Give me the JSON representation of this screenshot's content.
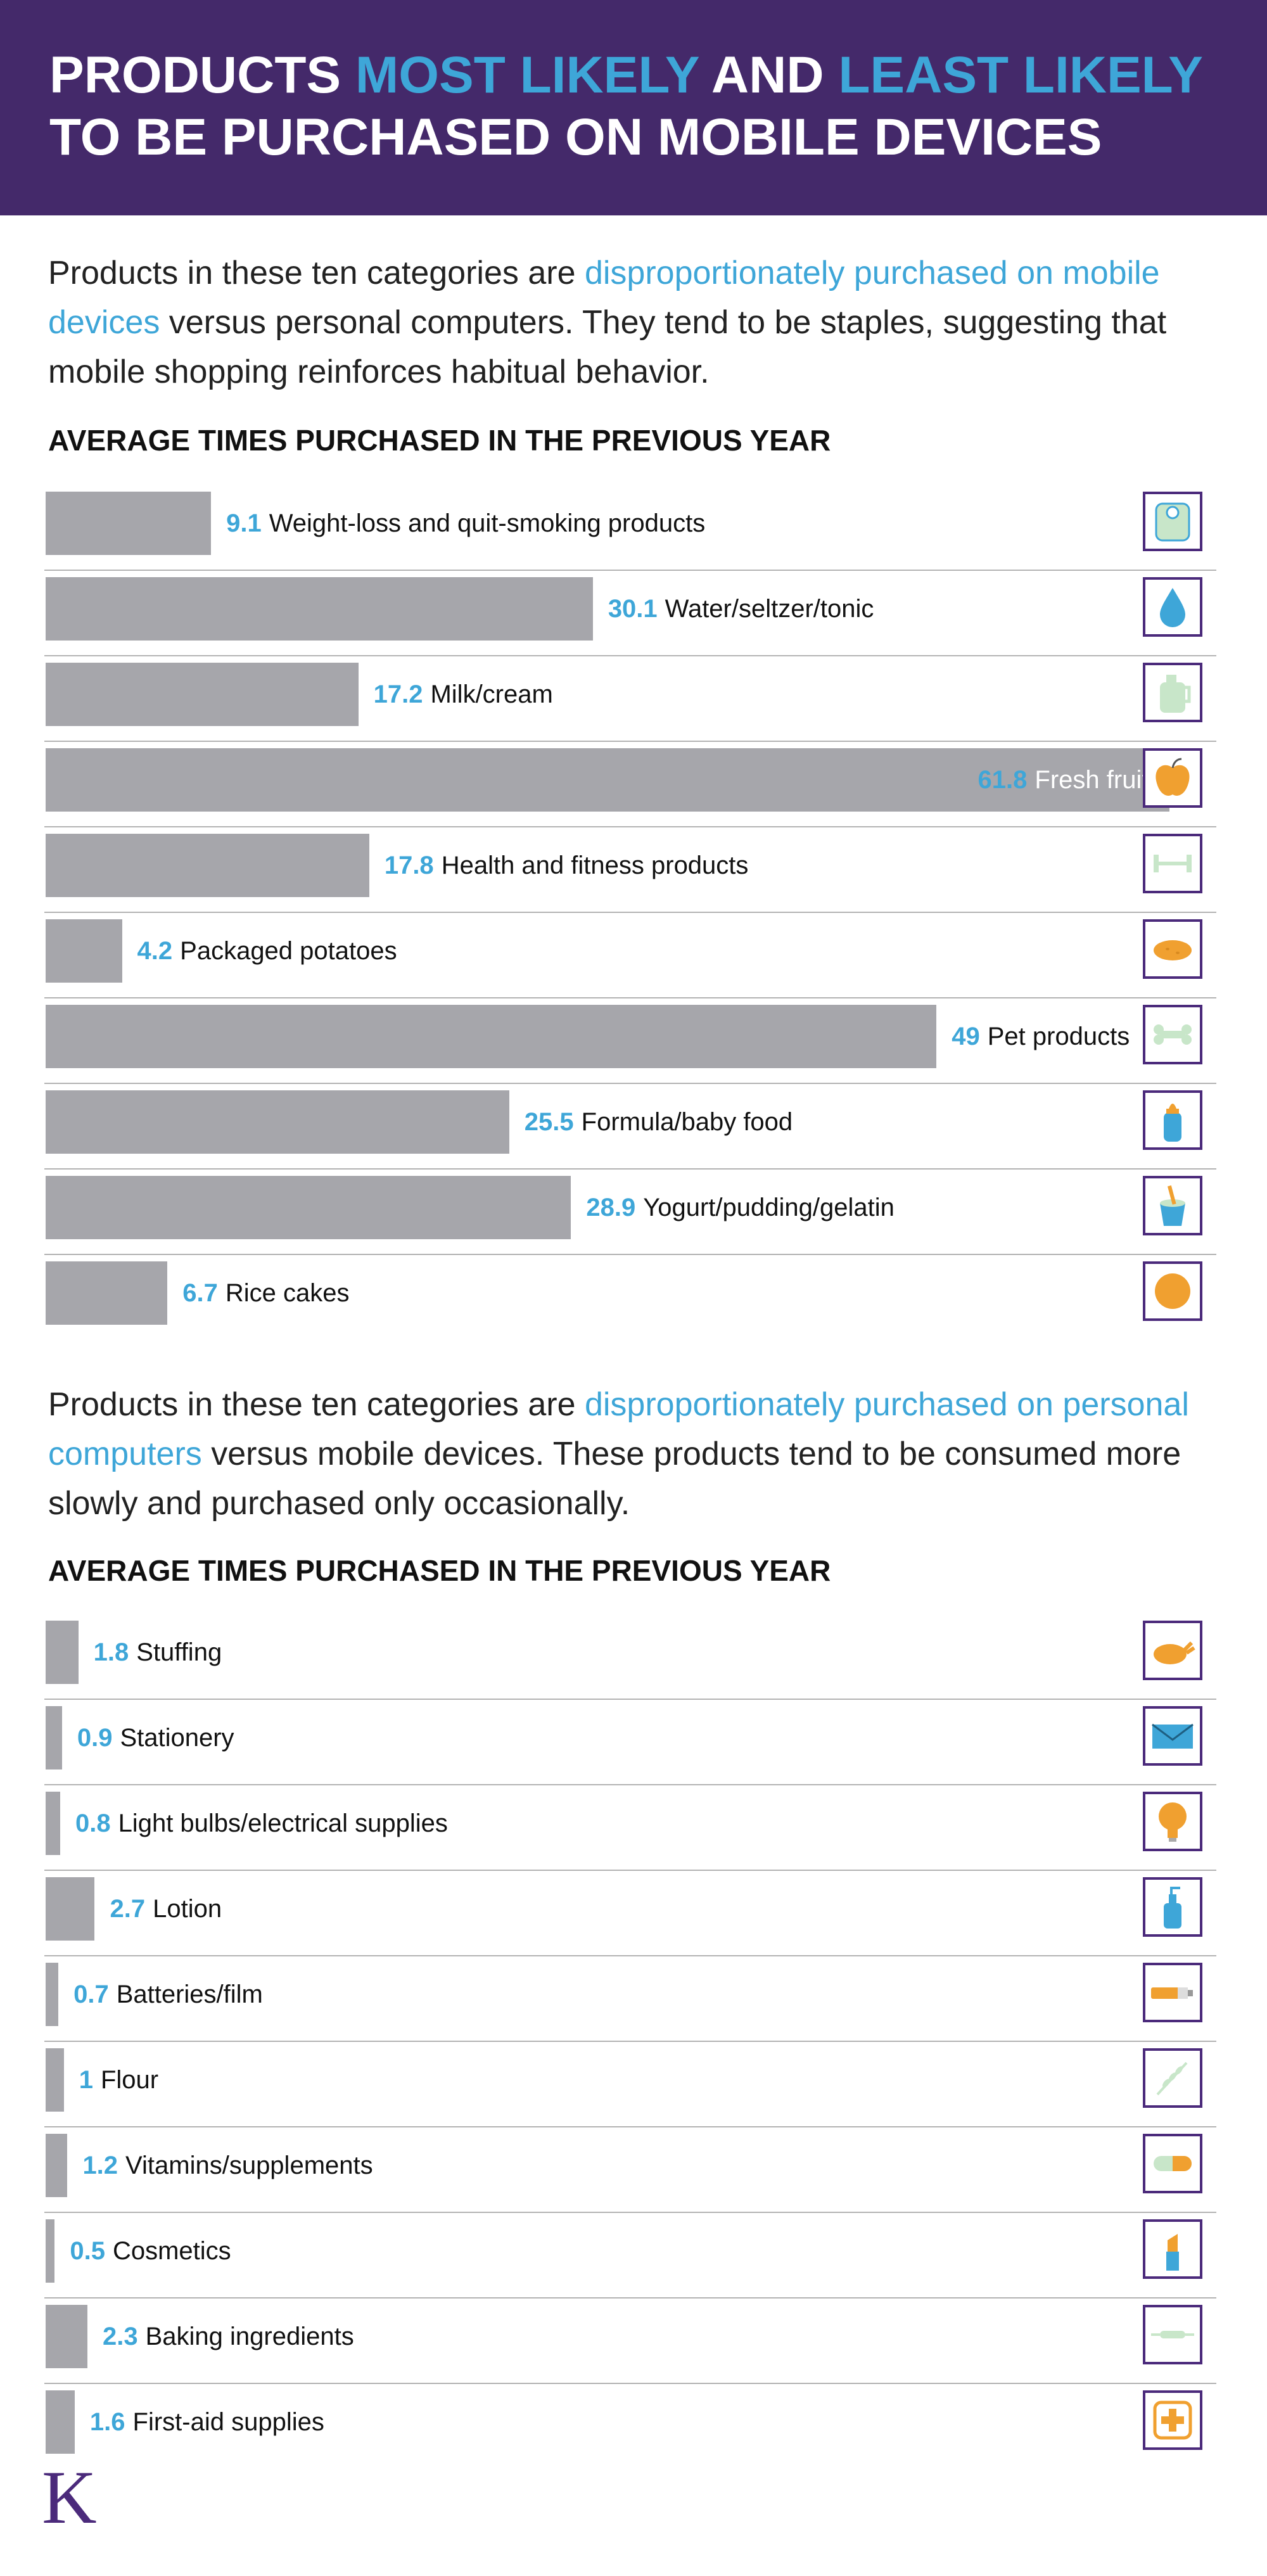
{
  "header": {
    "line1_parts": [
      "PRODUCTS ",
      "MOST LIKELY",
      " AND ",
      "LEAST LIKELY"
    ],
    "line2": "TO BE PURCHASED ON MOBILE DEVICES"
  },
  "section1": {
    "intro_pre": "Products in these ten categories are ",
    "intro_highlight": "disproportionately purchased on mobile devices",
    "intro_post": " versus personal computers. They tend to be staples, suggesting that mobile shopping reinforces habitual behavior.",
    "subhead": "AVERAGE TIMES PURCHASED IN THE PREVIOUS YEAR"
  },
  "section2": {
    "intro_pre": "Products in these ten categories are ",
    "intro_highlight": "disproportionately purchased on personal computers",
    "intro_post": " versus mobile devices. These products tend to be consumed more slowly and purchased only occasionally.",
    "subhead": "AVERAGE TIMES PURCHASED IN THE PREVIOUS YEAR"
  },
  "logo_letter": "K",
  "colors": {
    "header_bg": "#44296a",
    "accent": "#3ea6d8",
    "bar": "#a6a6ab",
    "icon_border": "#4b2a7b"
  },
  "chart_data": [
    {
      "type": "bar",
      "title": "AVERAGE TIMES PURCHASED IN THE PREVIOUS YEAR",
      "orientation": "horizontal",
      "categories": [
        "Weight-loss and quit-smoking products",
        "Water/seltzer/tonic",
        "Milk/cream",
        "Fresh fruits",
        "Health and fitness products",
        "Packaged potatoes",
        "Pet products",
        "Formula/baby food",
        "Yogurt/pudding/gelatin",
        "Rice cakes"
      ],
      "values": [
        9.1,
        30.1,
        17.2,
        61.8,
        17.8,
        4.2,
        49,
        25.5,
        28.9,
        6.7
      ],
      "value_labels": [
        "9.1",
        "30.1",
        "17.2",
        "61.8",
        "17.8",
        "4.2",
        "49",
        "25.5",
        "28.9",
        "6.7"
      ],
      "icons": [
        "scale-icon",
        "water-drop-icon",
        "milk-jug-icon",
        "apple-icon",
        "dumbbell-icon",
        "potato-icon",
        "bone-icon",
        "baby-bottle-icon",
        "yogurt-cup-icon",
        "rice-cake-icon"
      ],
      "xlim": [
        0,
        63
      ]
    },
    {
      "type": "bar",
      "title": "AVERAGE TIMES PURCHASED IN THE PREVIOUS YEAR",
      "orientation": "horizontal",
      "categories": [
        "Stuffing",
        "Stationery",
        "Light bulbs/electrical supplies",
        "Lotion",
        "Batteries/film",
        "Flour",
        "Vitamins/supplements",
        "Cosmetics",
        "Baking ingredients",
        "First-aid supplies"
      ],
      "values": [
        1.8,
        0.9,
        0.8,
        2.7,
        0.7,
        1,
        1.2,
        0.5,
        2.3,
        1.6
      ],
      "value_labels": [
        "1.8",
        "0.9",
        "0.8",
        "2.7",
        "0.7",
        "1",
        "1.2",
        "0.5",
        "2.3",
        "1.6"
      ],
      "icons": [
        "turkey-icon",
        "envelope-icon",
        "light-bulb-icon",
        "lotion-bottle-icon",
        "battery-icon",
        "wheat-icon",
        "pill-icon",
        "lipstick-icon",
        "rolling-pin-icon",
        "first-aid-icon"
      ],
      "xlim": [
        0,
        63
      ]
    }
  ]
}
